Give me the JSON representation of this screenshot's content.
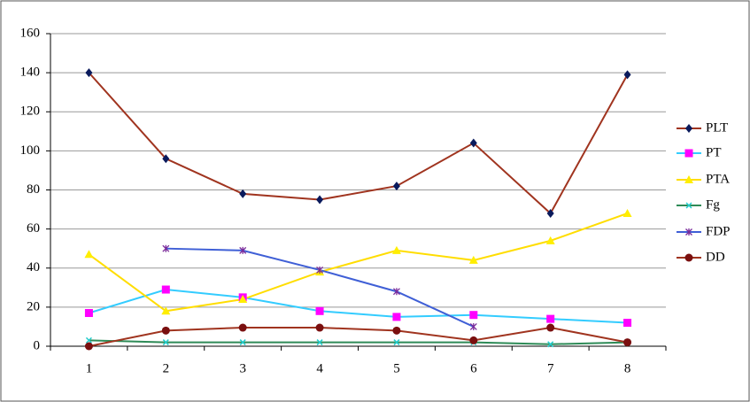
{
  "chart_data": {
    "type": "line",
    "categories": [
      "1",
      "2",
      "3",
      "4",
      "5",
      "6",
      "7",
      "8"
    ],
    "ylim": [
      0,
      160
    ],
    "yticks": [
      0,
      20,
      40,
      60,
      80,
      100,
      120,
      140,
      160
    ],
    "grid": true,
    "legend": "right",
    "series": [
      {
        "name": "PLT",
        "color": "#a0341f",
        "marker_color": "#0a1a5c",
        "marker": "diamond",
        "values": [
          140,
          96,
          78,
          75,
          82,
          104,
          68,
          139
        ]
      },
      {
        "name": "PT",
        "color": "#33ccff",
        "marker_color": "#ff00ff",
        "marker": "square",
        "values": [
          17,
          29,
          25,
          18,
          15,
          16,
          14,
          12
        ]
      },
      {
        "name": "PTA",
        "color": "#ffdd00",
        "marker_color": "#ffee00",
        "marker": "triangle",
        "values": [
          47,
          18,
          24,
          38,
          49,
          44,
          54,
          68
        ]
      },
      {
        "name": "Fg",
        "color": "#2e8b57",
        "marker_color": "#22cccc",
        "marker": "x",
        "values": [
          3,
          2,
          2,
          2,
          2,
          2,
          1,
          2
        ]
      },
      {
        "name": "FDP",
        "color": "#3f5fd6",
        "marker_color": "#7a2a9a",
        "marker": "star",
        "values": [
          null,
          50,
          49,
          39,
          28,
          10,
          null,
          null
        ]
      },
      {
        "name": "DD",
        "color": "#a0341f",
        "marker_color": "#7a0f0f",
        "marker": "circle",
        "values": [
          0,
          8,
          9.5,
          9.5,
          8,
          3,
          9.5,
          2
        ]
      }
    ]
  }
}
